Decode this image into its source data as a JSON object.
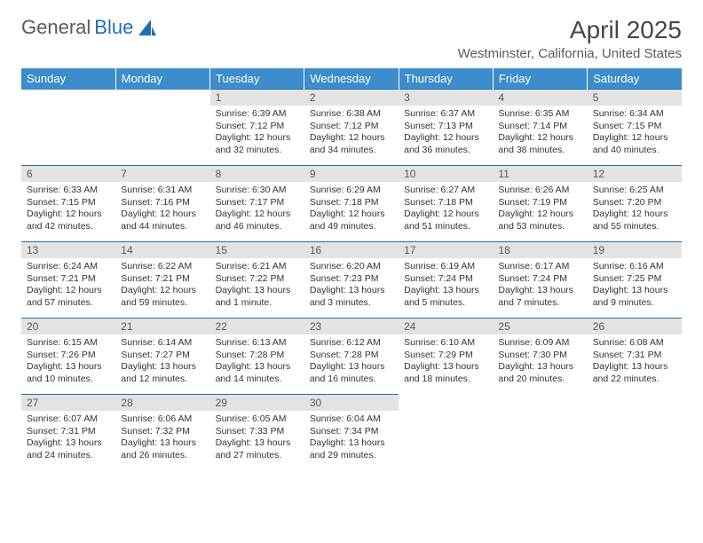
{
  "logo": {
    "text1": "General",
    "text2": "Blue"
  },
  "title": "April 2025",
  "location": "Westminster, California, United States",
  "colors": {
    "header_bg": "#3b8dcb",
    "header_text": "#ffffff",
    "daynum_bg": "#e3e3e3",
    "daynum_text": "#5a5a5a",
    "border": "#1f6fb2",
    "body_text": "#333333",
    "title_text": "#464646",
    "logo_gray": "#5a5a5a",
    "logo_blue": "#1f6fb2"
  },
  "typography": {
    "title_fontsize": 28,
    "location_fontsize": 15,
    "dayheader_fontsize": 13,
    "daynum_fontsize": 12,
    "cell_fontsize": 10.5
  },
  "day_headers": [
    "Sunday",
    "Monday",
    "Tuesday",
    "Wednesday",
    "Thursday",
    "Friday",
    "Saturday"
  ],
  "weeks": [
    [
      null,
      null,
      {
        "num": "1",
        "sunrise": "Sunrise: 6:39 AM",
        "sunset": "Sunset: 7:12 PM",
        "daylight": "Daylight: 12 hours and 32 minutes."
      },
      {
        "num": "2",
        "sunrise": "Sunrise: 6:38 AM",
        "sunset": "Sunset: 7:12 PM",
        "daylight": "Daylight: 12 hours and 34 minutes."
      },
      {
        "num": "3",
        "sunrise": "Sunrise: 6:37 AM",
        "sunset": "Sunset: 7:13 PM",
        "daylight": "Daylight: 12 hours and 36 minutes."
      },
      {
        "num": "4",
        "sunrise": "Sunrise: 6:35 AM",
        "sunset": "Sunset: 7:14 PM",
        "daylight": "Daylight: 12 hours and 38 minutes."
      },
      {
        "num": "5",
        "sunrise": "Sunrise: 6:34 AM",
        "sunset": "Sunset: 7:15 PM",
        "daylight": "Daylight: 12 hours and 40 minutes."
      }
    ],
    [
      {
        "num": "6",
        "sunrise": "Sunrise: 6:33 AM",
        "sunset": "Sunset: 7:15 PM",
        "daylight": "Daylight: 12 hours and 42 minutes."
      },
      {
        "num": "7",
        "sunrise": "Sunrise: 6:31 AM",
        "sunset": "Sunset: 7:16 PM",
        "daylight": "Daylight: 12 hours and 44 minutes."
      },
      {
        "num": "8",
        "sunrise": "Sunrise: 6:30 AM",
        "sunset": "Sunset: 7:17 PM",
        "daylight": "Daylight: 12 hours and 46 minutes."
      },
      {
        "num": "9",
        "sunrise": "Sunrise: 6:29 AM",
        "sunset": "Sunset: 7:18 PM",
        "daylight": "Daylight: 12 hours and 49 minutes."
      },
      {
        "num": "10",
        "sunrise": "Sunrise: 6:27 AM",
        "sunset": "Sunset: 7:18 PM",
        "daylight": "Daylight: 12 hours and 51 minutes."
      },
      {
        "num": "11",
        "sunrise": "Sunrise: 6:26 AM",
        "sunset": "Sunset: 7:19 PM",
        "daylight": "Daylight: 12 hours and 53 minutes."
      },
      {
        "num": "12",
        "sunrise": "Sunrise: 6:25 AM",
        "sunset": "Sunset: 7:20 PM",
        "daylight": "Daylight: 12 hours and 55 minutes."
      }
    ],
    [
      {
        "num": "13",
        "sunrise": "Sunrise: 6:24 AM",
        "sunset": "Sunset: 7:21 PM",
        "daylight": "Daylight: 12 hours and 57 minutes."
      },
      {
        "num": "14",
        "sunrise": "Sunrise: 6:22 AM",
        "sunset": "Sunset: 7:21 PM",
        "daylight": "Daylight: 12 hours and 59 minutes."
      },
      {
        "num": "15",
        "sunrise": "Sunrise: 6:21 AM",
        "sunset": "Sunset: 7:22 PM",
        "daylight": "Daylight: 13 hours and 1 minute."
      },
      {
        "num": "16",
        "sunrise": "Sunrise: 6:20 AM",
        "sunset": "Sunset: 7:23 PM",
        "daylight": "Daylight: 13 hours and 3 minutes."
      },
      {
        "num": "17",
        "sunrise": "Sunrise: 6:19 AM",
        "sunset": "Sunset: 7:24 PM",
        "daylight": "Daylight: 13 hours and 5 minutes."
      },
      {
        "num": "18",
        "sunrise": "Sunrise: 6:17 AM",
        "sunset": "Sunset: 7:24 PM",
        "daylight": "Daylight: 13 hours and 7 minutes."
      },
      {
        "num": "19",
        "sunrise": "Sunrise: 6:16 AM",
        "sunset": "Sunset: 7:25 PM",
        "daylight": "Daylight: 13 hours and 9 minutes."
      }
    ],
    [
      {
        "num": "20",
        "sunrise": "Sunrise: 6:15 AM",
        "sunset": "Sunset: 7:26 PM",
        "daylight": "Daylight: 13 hours and 10 minutes."
      },
      {
        "num": "21",
        "sunrise": "Sunrise: 6:14 AM",
        "sunset": "Sunset: 7:27 PM",
        "daylight": "Daylight: 13 hours and 12 minutes."
      },
      {
        "num": "22",
        "sunrise": "Sunrise: 6:13 AM",
        "sunset": "Sunset: 7:28 PM",
        "daylight": "Daylight: 13 hours and 14 minutes."
      },
      {
        "num": "23",
        "sunrise": "Sunrise: 6:12 AM",
        "sunset": "Sunset: 7:28 PM",
        "daylight": "Daylight: 13 hours and 16 minutes."
      },
      {
        "num": "24",
        "sunrise": "Sunrise: 6:10 AM",
        "sunset": "Sunset: 7:29 PM",
        "daylight": "Daylight: 13 hours and 18 minutes."
      },
      {
        "num": "25",
        "sunrise": "Sunrise: 6:09 AM",
        "sunset": "Sunset: 7:30 PM",
        "daylight": "Daylight: 13 hours and 20 minutes."
      },
      {
        "num": "26",
        "sunrise": "Sunrise: 6:08 AM",
        "sunset": "Sunset: 7:31 PM",
        "daylight": "Daylight: 13 hours and 22 minutes."
      }
    ],
    [
      {
        "num": "27",
        "sunrise": "Sunrise: 6:07 AM",
        "sunset": "Sunset: 7:31 PM",
        "daylight": "Daylight: 13 hours and 24 minutes."
      },
      {
        "num": "28",
        "sunrise": "Sunrise: 6:06 AM",
        "sunset": "Sunset: 7:32 PM",
        "daylight": "Daylight: 13 hours and 26 minutes."
      },
      {
        "num": "29",
        "sunrise": "Sunrise: 6:05 AM",
        "sunset": "Sunset: 7:33 PM",
        "daylight": "Daylight: 13 hours and 27 minutes."
      },
      {
        "num": "30",
        "sunrise": "Sunrise: 6:04 AM",
        "sunset": "Sunset: 7:34 PM",
        "daylight": "Daylight: 13 hours and 29 minutes."
      },
      null,
      null,
      null
    ]
  ]
}
